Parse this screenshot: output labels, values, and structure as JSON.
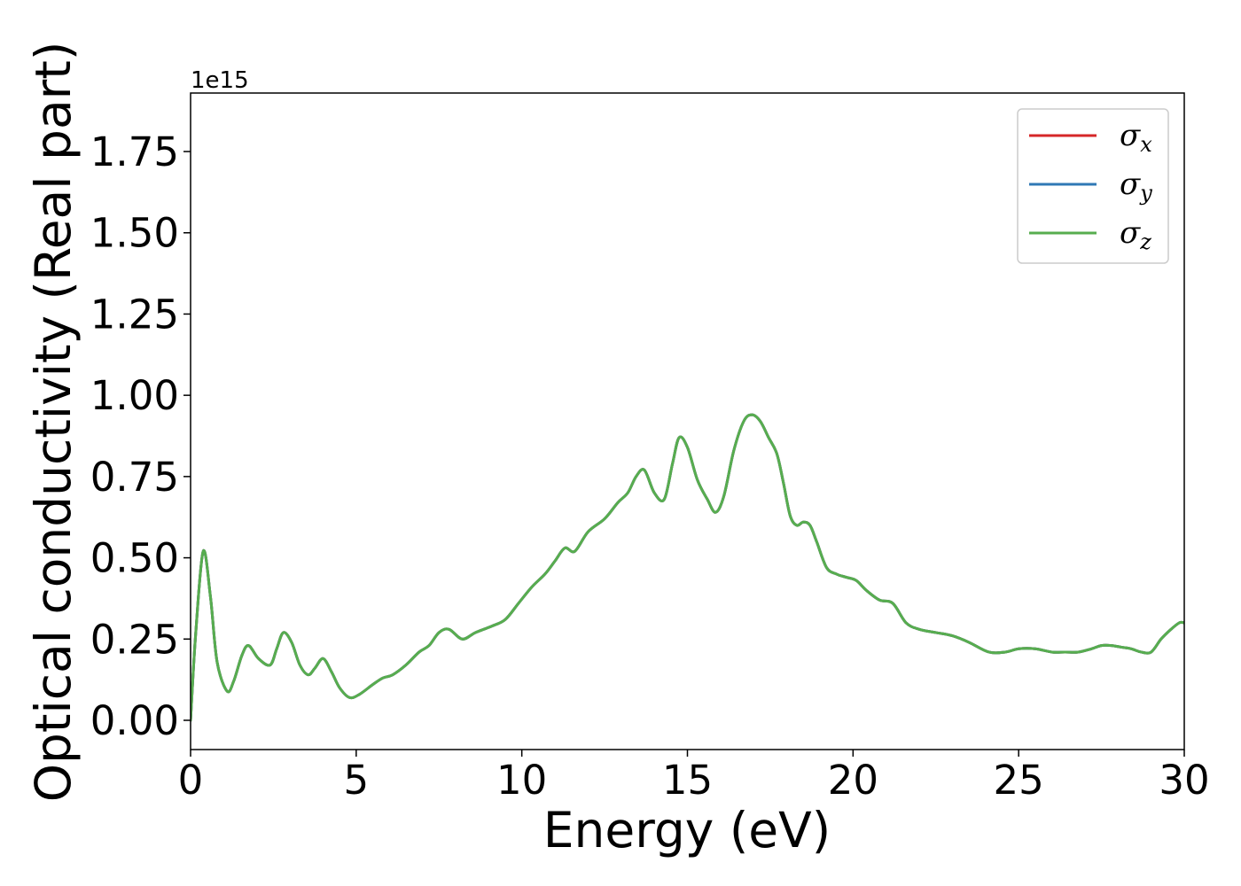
{
  "chart_data": {
    "type": "line",
    "xlabel": "Energy (eV)",
    "ylabel": "Optical conductivity (Real part)",
    "y_offset_text": "1e15",
    "xlim": [
      0,
      30
    ],
    "ylim": [
      -0.09,
      1.93
    ],
    "x_ticks": [
      0,
      5,
      10,
      15,
      20,
      25,
      30
    ],
    "x_tick_labels": [
      "0",
      "5",
      "10",
      "15",
      "20",
      "25",
      "30"
    ],
    "y_ticks": [
      0.0,
      0.25,
      0.5,
      0.75,
      1.0,
      1.25,
      1.5,
      1.75
    ],
    "y_tick_labels": [
      "0.00",
      "0.25",
      "0.50",
      "0.75",
      "1.00",
      "1.25",
      "1.50",
      "1.75"
    ],
    "grid": false,
    "legend_position": "top-right",
    "x": [
      0.0,
      0.15,
      0.38,
      0.6,
      0.8,
      1.1,
      1.3,
      1.55,
      1.75,
      2.05,
      2.4,
      2.6,
      2.8,
      3.05,
      3.3,
      3.55,
      3.75,
      4.0,
      4.25,
      4.5,
      4.8,
      5.1,
      5.5,
      5.8,
      6.1,
      6.5,
      6.9,
      7.2,
      7.5,
      7.8,
      8.2,
      8.6,
      9.1,
      9.5,
      9.9,
      10.3,
      10.7,
      11.0,
      11.3,
      11.6,
      12.0,
      12.5,
      12.9,
      13.2,
      13.45,
      13.7,
      14.0,
      14.3,
      14.55,
      14.75,
      15.0,
      15.3,
      15.6,
      15.85,
      16.1,
      16.4,
      16.7,
      16.95,
      17.2,
      17.45,
      17.7,
      17.9,
      18.1,
      18.3,
      18.5,
      18.7,
      18.9,
      19.2,
      19.5,
      19.8,
      20.1,
      20.4,
      20.8,
      21.2,
      21.6,
      22.0,
      22.5,
      23.0,
      23.5,
      24.1,
      24.6,
      25.0,
      25.5,
      26.0,
      26.4,
      26.8,
      27.2,
      27.5,
      27.8,
      28.1,
      28.4,
      28.7,
      29.0,
      29.3,
      29.6,
      29.85,
      30.0
    ],
    "series": [
      {
        "name": "σx",
        "color": "#d62728",
        "values": [
          0.0,
          0.26,
          0.52,
          0.38,
          0.18,
          0.09,
          0.12,
          0.2,
          0.23,
          0.19,
          0.17,
          0.22,
          0.27,
          0.24,
          0.17,
          0.14,
          0.16,
          0.19,
          0.15,
          0.1,
          0.07,
          0.08,
          0.11,
          0.13,
          0.14,
          0.17,
          0.21,
          0.23,
          0.27,
          0.28,
          0.25,
          0.27,
          0.29,
          0.31,
          0.36,
          0.41,
          0.45,
          0.49,
          0.53,
          0.52,
          0.58,
          0.62,
          0.67,
          0.7,
          0.75,
          0.77,
          0.7,
          0.68,
          0.79,
          0.87,
          0.84,
          0.74,
          0.68,
          0.64,
          0.69,
          0.83,
          0.92,
          0.94,
          0.92,
          0.87,
          0.82,
          0.73,
          0.63,
          0.6,
          0.61,
          0.6,
          0.55,
          0.47,
          0.45,
          0.44,
          0.43,
          0.4,
          0.37,
          0.36,
          0.3,
          0.28,
          0.27,
          0.26,
          0.24,
          0.21,
          0.21,
          0.22,
          0.22,
          0.21,
          0.21,
          0.21,
          0.22,
          0.23,
          0.23,
          0.225,
          0.22,
          0.21,
          0.21,
          0.25,
          0.28,
          0.3,
          0.3
        ]
      },
      {
        "name": "σy",
        "color": "#2f78b5",
        "values": [
          0.0,
          0.26,
          0.52,
          0.38,
          0.18,
          0.09,
          0.12,
          0.2,
          0.23,
          0.19,
          0.17,
          0.22,
          0.27,
          0.24,
          0.17,
          0.14,
          0.16,
          0.19,
          0.15,
          0.1,
          0.07,
          0.08,
          0.11,
          0.13,
          0.14,
          0.17,
          0.21,
          0.23,
          0.27,
          0.28,
          0.25,
          0.27,
          0.29,
          0.31,
          0.36,
          0.41,
          0.45,
          0.49,
          0.53,
          0.52,
          0.58,
          0.62,
          0.67,
          0.7,
          0.75,
          0.77,
          0.7,
          0.68,
          0.79,
          0.87,
          0.84,
          0.74,
          0.68,
          0.64,
          0.69,
          0.83,
          0.92,
          0.94,
          0.92,
          0.87,
          0.82,
          0.73,
          0.63,
          0.6,
          0.61,
          0.6,
          0.55,
          0.47,
          0.45,
          0.44,
          0.43,
          0.4,
          0.37,
          0.36,
          0.3,
          0.28,
          0.27,
          0.26,
          0.24,
          0.21,
          0.21,
          0.22,
          0.22,
          0.21,
          0.21,
          0.21,
          0.22,
          0.23,
          0.23,
          0.225,
          0.22,
          0.21,
          0.21,
          0.25,
          0.28,
          0.3,
          0.3
        ]
      },
      {
        "name": "σz",
        "color": "#57ad4f",
        "values": [
          0.0,
          0.26,
          0.52,
          0.38,
          0.18,
          0.09,
          0.12,
          0.2,
          0.23,
          0.19,
          0.17,
          0.22,
          0.27,
          0.24,
          0.17,
          0.14,
          0.16,
          0.19,
          0.15,
          0.1,
          0.07,
          0.08,
          0.11,
          0.13,
          0.14,
          0.17,
          0.21,
          0.23,
          0.27,
          0.28,
          0.25,
          0.27,
          0.29,
          0.31,
          0.36,
          0.41,
          0.45,
          0.49,
          0.53,
          0.52,
          0.58,
          0.62,
          0.67,
          0.7,
          0.75,
          0.77,
          0.7,
          0.68,
          0.79,
          0.87,
          0.84,
          0.74,
          0.68,
          0.64,
          0.69,
          0.83,
          0.92,
          0.94,
          0.92,
          0.87,
          0.82,
          0.73,
          0.63,
          0.6,
          0.61,
          0.6,
          0.55,
          0.47,
          0.45,
          0.44,
          0.43,
          0.4,
          0.37,
          0.36,
          0.3,
          0.28,
          0.27,
          0.26,
          0.24,
          0.21,
          0.21,
          0.22,
          0.22,
          0.21,
          0.21,
          0.21,
          0.22,
          0.23,
          0.23,
          0.225,
          0.22,
          0.21,
          0.21,
          0.25,
          0.28,
          0.3,
          0.3
        ]
      }
    ],
    "legend": [
      {
        "symbol": "σ",
        "sub": "x",
        "color": "#d62728"
      },
      {
        "symbol": "σ",
        "sub": "y",
        "color": "#2f78b5"
      },
      {
        "symbol": "σ",
        "sub": "z",
        "color": "#57ad4f"
      }
    ]
  }
}
